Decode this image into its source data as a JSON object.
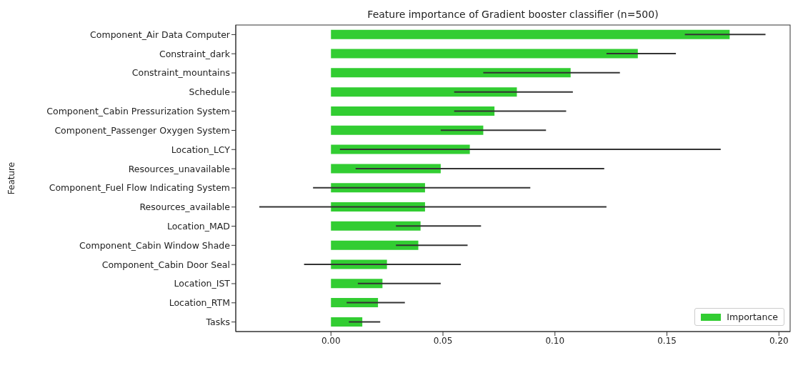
{
  "chart_data": {
    "type": "bar",
    "orientation": "horizontal",
    "title": "Feature importance of Gradient booster classifier (n=500)",
    "ylabel": "Feature",
    "categories": [
      "Component_Air Data Computer",
      "Constraint_dark",
      "Constraint_mountains",
      "Schedule",
      "Component_Cabin Pressurization System",
      "Component_Passenger Oxygen System",
      "Location_LCY",
      "Resources_unavailable",
      "Component_Fuel Flow Indicating System",
      "Resources_available",
      "Location_MAD",
      "Component_Cabin Window Shade",
      "Component_Cabin Door Seal",
      "Location_IST",
      "Location_RTM",
      "Tasks"
    ],
    "series": [
      {
        "name": "Importance",
        "color": "#32cd32",
        "values": [
          0.178,
          0.137,
          0.107,
          0.083,
          0.073,
          0.068,
          0.062,
          0.049,
          0.042,
          0.042,
          0.04,
          0.039,
          0.025,
          0.023,
          0.021,
          0.014
        ],
        "errors": [
          [
            0.158,
            0.194
          ],
          [
            0.123,
            0.154
          ],
          [
            0.068,
            0.129
          ],
          [
            0.055,
            0.108
          ],
          [
            0.055,
            0.105
          ],
          [
            0.049,
            0.096
          ],
          [
            0.004,
            0.174
          ],
          [
            0.011,
            0.122
          ],
          [
            -0.008,
            0.089
          ],
          [
            -0.032,
            0.123
          ],
          [
            0.029,
            0.067
          ],
          [
            0.029,
            0.061
          ],
          [
            -0.012,
            0.058
          ],
          [
            0.012,
            0.049
          ],
          [
            0.007,
            0.033
          ],
          [
            0.008,
            0.022
          ]
        ]
      }
    ],
    "xlim": [
      -0.0425,
      0.205
    ],
    "xticks": [
      {
        "value": 0,
        "label": "0.00"
      },
      {
        "value": 0.05,
        "label": "0.05"
      },
      {
        "value": 0.1,
        "label": "0.10"
      },
      {
        "value": 0.15,
        "label": "0.15"
      },
      {
        "value": 0.2,
        "label": "0.20"
      }
    ],
    "grid": false,
    "legend": "bottom right"
  }
}
